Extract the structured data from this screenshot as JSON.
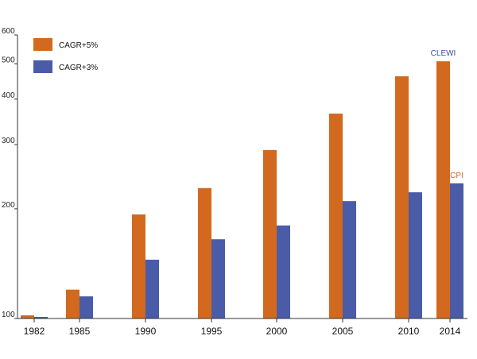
{
  "colors": {
    "cagr5": "#d2691e",
    "cagr3": "#4a5ca8",
    "axis": "#333333",
    "clewi_text": "#3b4f9a",
    "cpi_text": "#d2691e"
  },
  "chart_data": {
    "type": "bar",
    "categories": [
      "1982",
      "1985",
      "1990",
      "1995",
      "2000",
      "2005",
      "2010",
      "2014"
    ],
    "series": [
      {
        "name": "CAGR+5%",
        "color_key": "cagr5",
        "values": [
          102,
          120,
          193,
          228,
          290,
          365,
          462,
          508
        ]
      },
      {
        "name": "CAGR+3%",
        "color_key": "cagr3",
        "values": [
          101,
          115,
          145,
          165,
          180,
          210,
          222,
          235
        ]
      }
    ],
    "y_ticks": [
      100,
      200,
      300,
      400,
      500,
      600
    ],
    "ylim": [
      100,
      600
    ],
    "y_scale": "log",
    "legend_position": "top-left",
    "grid": false,
    "annotations": [
      {
        "text": "CLEWI",
        "category": "2014",
        "series_index": 0,
        "color_key": "clewi_text"
      },
      {
        "text": "CPI",
        "category": "2014",
        "series_index": 1,
        "color_key": "cpi_text"
      }
    ]
  }
}
